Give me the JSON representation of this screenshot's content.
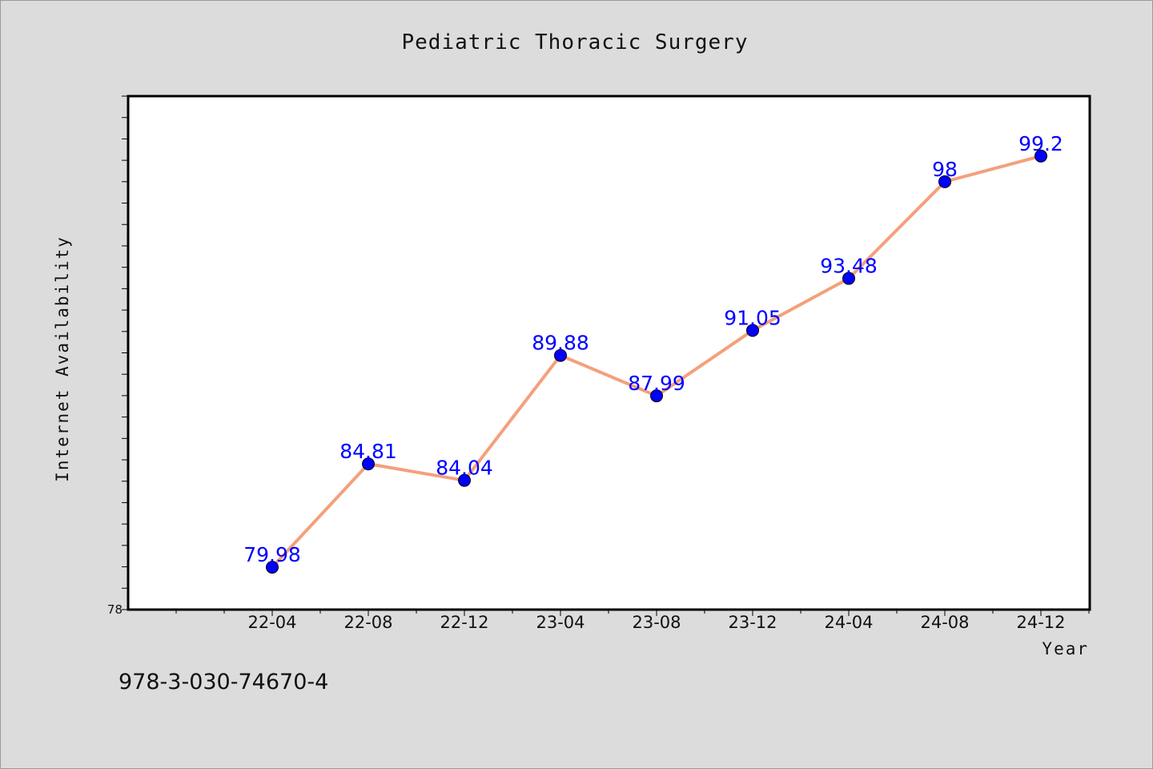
{
  "chart_data": {
    "type": "line",
    "title": "Pediatric Thoracic Surgery",
    "xlabel": "Year",
    "ylabel": "Internet Availability",
    "categories": [
      "22-04",
      "22-08",
      "22-12",
      "23-04",
      "23-08",
      "23-12",
      "24-04",
      "24-08",
      "24-12"
    ],
    "series": [
      {
        "values": [
          79.98,
          84.81,
          84.04,
          89.88,
          87.99,
          91.05,
          93.48,
          98,
          99.2
        ],
        "labels": [
          "79.98",
          "84.81",
          "84.04",
          "89.88",
          "87.99",
          "91.05",
          "93.48",
          "98",
          "99.2"
        ]
      }
    ],
    "ylim": [
      78,
      102
    ],
    "ytick_label": "78",
    "grid": false,
    "line_color": "#f4a07c",
    "marker_color": "#0000ff",
    "label_color": "#0000ff"
  },
  "footer": {
    "id_text": "978-3-030-74670-4"
  }
}
